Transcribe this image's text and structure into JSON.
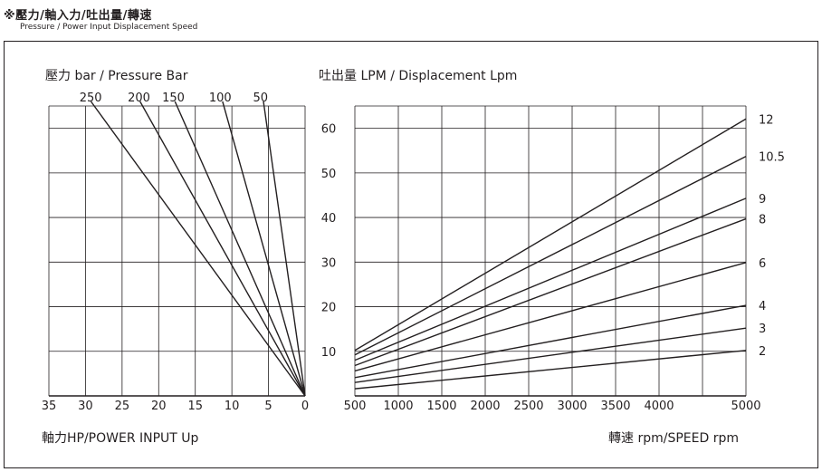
{
  "header": {
    "title_cn": "※壓力/軸入力/吐出量/轉速",
    "title_en": "Pressure / Power Input Displacement Speed"
  },
  "chart_data": {
    "type": "line",
    "title": "壓力/軸入力/吐出量/轉速",
    "colors": {
      "line": "#231f20",
      "background": "#ffffff"
    },
    "pressure_label": "壓力 bar / Pressure Bar",
    "displacement_label": "吐出量 LPM / Displacement Lpm",
    "power_axis_label": "軸力HP/POWER INPUT  Up",
    "speed_axis_label": "轉速 rpm/SPEED rpm",
    "power_ticks": [
      "35",
      "30",
      "25",
      "20",
      "15",
      "10",
      "5",
      "0"
    ],
    "speed_ticks": [
      "500",
      "1000",
      "1500",
      "2000",
      "2500",
      "3000",
      "3500",
      "4000",
      "5000"
    ],
    "displacement_ticks": [
      "10",
      "20",
      "30",
      "40",
      "50",
      "60"
    ],
    "power_range": [
      0,
      35
    ],
    "speed_range": [
      500,
      5000
    ],
    "displacement_range": [
      0,
      65
    ],
    "pressure_lines": [
      {
        "label": "250",
        "hp_at_top": 28.8
      },
      {
        "label": "200",
        "hp_at_top": 22.2
      },
      {
        "label": "150",
        "hp_at_top": 17.5
      },
      {
        "label": "100",
        "hp_at_top": 11.1
      },
      {
        "label": "50",
        "hp_at_top": 5.6
      }
    ],
    "displacement_series": [
      {
        "name": "12",
        "values": [
          [
            500,
            10.2
          ],
          [
            5000,
            62.1
          ]
        ]
      },
      {
        "name": "10.5",
        "values": [
          [
            500,
            9.2
          ],
          [
            5000,
            53.7
          ]
        ]
      },
      {
        "name": "9",
        "values": [
          [
            500,
            8.0
          ],
          [
            5000,
            44.3
          ]
        ]
      },
      {
        "name": "8",
        "values": [
          [
            500,
            6.8
          ],
          [
            5000,
            39.7
          ]
        ]
      },
      {
        "name": "6",
        "values": [
          [
            500,
            5.6
          ],
          [
            5000,
            29.9
          ]
        ]
      },
      {
        "name": "4",
        "values": [
          [
            500,
            4.1
          ],
          [
            5000,
            20.3
          ]
        ]
      },
      {
        "name": "3",
        "values": [
          [
            500,
            3.0
          ],
          [
            5000,
            15.2
          ]
        ]
      },
      {
        "name": "2",
        "values": [
          [
            500,
            1.6
          ],
          [
            5000,
            10.2
          ]
        ]
      }
    ]
  }
}
